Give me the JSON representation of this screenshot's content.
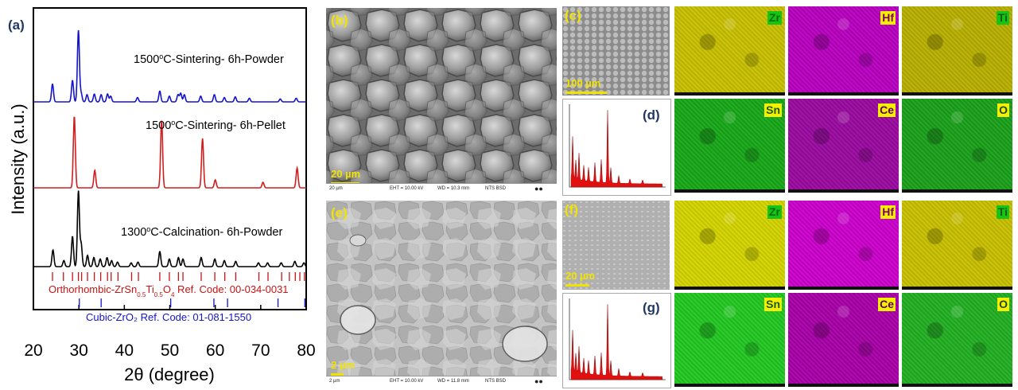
{
  "panel_a": {
    "label": "(a)",
    "ylabel": "Intensity (a.u.)",
    "xlabel": "2θ (degree)",
    "xticks": [
      "20",
      "30",
      "40",
      "50",
      "60",
      "70",
      "80"
    ],
    "curve_labels": [
      {
        "text_pre": "1500",
        "sup": "o",
        "text_post": "C-Sintering- 6h-Powder"
      },
      {
        "text_pre": "1500",
        "sup": "o",
        "text_post": "C-Sintering- 6h-Pellet"
      },
      {
        "text_pre": "1300",
        "sup": "o",
        "text_post": "C-Calcination- 6h-Powder"
      }
    ],
    "ref1": {
      "text_pre": "Orthorhombic-ZrSn",
      "sub1": "0.5",
      "mid": "Ti",
      "sub2": "0.5",
      "post": "O",
      "sub3": "4",
      "tail": "  Ref. Code: 00-034-0031"
    },
    "ref2": "Cubic-ZrO₂ Ref. Code: 01-081-1550",
    "colors": {
      "powder1500": "#1414c8",
      "pellet1500": "#d21e1e",
      "calc1300": "#000000",
      "ref_ortho": "#c81414",
      "ref_cubic": "#1414c8"
    }
  },
  "chart_data": {
    "type": "line",
    "xlabel": "2θ (degree)",
    "ylabel": "Intensity (a.u.)",
    "xlim": [
      20,
      80
    ],
    "series": [
      {
        "name": "1500oC-Sintering- 6h-Powder",
        "color": "#1414c8",
        "peaks": [
          [
            24.2,
            0.25
          ],
          [
            28.6,
            0.3
          ],
          [
            29.9,
            1.0
          ],
          [
            30.5,
            0.12
          ],
          [
            31.8,
            0.1
          ],
          [
            33.4,
            0.11
          ],
          [
            34.9,
            0.1
          ],
          [
            36.3,
            0.11
          ],
          [
            37.0,
            0.08
          ],
          [
            42.9,
            0.06
          ],
          [
            47.8,
            0.15
          ],
          [
            49.9,
            0.08
          ],
          [
            51.8,
            0.1
          ],
          [
            52.4,
            0.12
          ],
          [
            53.2,
            0.1
          ],
          [
            56.8,
            0.08
          ],
          [
            59.8,
            0.1
          ],
          [
            62.0,
            0.06
          ],
          [
            64.4,
            0.07
          ],
          [
            67.5,
            0.05
          ],
          [
            74.3,
            0.04
          ],
          [
            77.8,
            0.05
          ]
        ]
      },
      {
        "name": "1500oC-Sintering- 6h-Pellet",
        "color": "#d21e1e",
        "peaks": [
          [
            29.0,
            0.9
          ],
          [
            33.5,
            0.22
          ],
          [
            48.2,
            0.85
          ],
          [
            57.2,
            0.62
          ],
          [
            60.0,
            0.1
          ],
          [
            70.5,
            0.07
          ],
          [
            78.0,
            0.25
          ]
        ]
      },
      {
        "name": "1300oC-Calcination- 6h-Powder",
        "color": "#000000",
        "peaks": [
          [
            24.3,
            0.22
          ],
          [
            26.7,
            0.08
          ],
          [
            28.6,
            0.4
          ],
          [
            29.9,
            1.0
          ],
          [
            30.5,
            0.3
          ],
          [
            31.9,
            0.15
          ],
          [
            33.3,
            0.12
          ],
          [
            34.7,
            0.1
          ],
          [
            36.2,
            0.12
          ],
          [
            37.2,
            0.08
          ],
          [
            38.5,
            0.06
          ],
          [
            41.5,
            0.05
          ],
          [
            43.0,
            0.06
          ],
          [
            47.8,
            0.2
          ],
          [
            49.9,
            0.1
          ],
          [
            51.9,
            0.12
          ],
          [
            52.9,
            0.1
          ],
          [
            56.9,
            0.12
          ],
          [
            59.9,
            0.1
          ],
          [
            62.0,
            0.08
          ],
          [
            64.5,
            0.07
          ],
          [
            69.5,
            0.05
          ],
          [
            71.5,
            0.05
          ],
          [
            74.5,
            0.05
          ],
          [
            77.5,
            0.07
          ],
          [
            79.5,
            0.05
          ]
        ]
      }
    ],
    "ref_ortho_positions": [
      24.2,
      26.6,
      28.6,
      29.9,
      30.6,
      31.9,
      33.4,
      34.8,
      36.3,
      37.1,
      38.6,
      41.6,
      43.1,
      47.8,
      49.9,
      51.9,
      52.9,
      56.9,
      59.9,
      62.1,
      64.5,
      69.6,
      71.6,
      74.6,
      76.3,
      77.6,
      78.6,
      79.6
    ],
    "ref_cubic_positions": [
      30.1,
      34.9,
      50.2,
      59.7,
      62.7,
      73.8,
      79.7
    ]
  },
  "panels": {
    "b": {
      "label": "(b)",
      "scale": "20 µm",
      "footer": {
        "bar": "20 µm",
        "eht": "EHT = 10.00 kV",
        "wd": "WD = 10.3 mm",
        "det": "NTS BSD"
      }
    },
    "c": {
      "label": "(c)",
      "scale": "100 µm"
    },
    "d": {
      "label": "(d)"
    },
    "e": {
      "label": "(e)",
      "scale": "2 µm",
      "footer": {
        "bar": "2 µm",
        "eht": "EHT = 10.00 kV",
        "wd": "WD = 11.8 mm",
        "det": "NTS BSD"
      }
    },
    "f": {
      "label": "(f)",
      "scale": "20 µm"
    },
    "g": {
      "label": "(g)"
    }
  },
  "maps_top": [
    {
      "el": "Zr",
      "bg": "#c8c000",
      "badge_bg": "#16c416",
      "badge_fg": "#0a6a0a"
    },
    {
      "el": "Hf",
      "bg": "#b800c0",
      "badge_bg": "#f6f000",
      "badge_fg": "#7a0070"
    },
    {
      "el": "Ti",
      "bg": "#b8b000",
      "badge_bg": "#16c416",
      "badge_fg": "#1a5a1a"
    },
    {
      "el": "Sn",
      "bg": "#18a818",
      "badge_bg": "#f6f000",
      "badge_fg": "#1a5a1a"
    },
    {
      "el": "Ce",
      "bg": "#9a0aa0",
      "badge_bg": "#f6f000",
      "badge_fg": "#5a005a"
    },
    {
      "el": "O",
      "bg": "#1aa01a",
      "badge_bg": "#f6f000",
      "badge_fg": "#1a4a1a"
    }
  ],
  "maps_bottom": [
    {
      "el": "Zr",
      "bg": "#d4d400",
      "badge_bg": "#16c416",
      "badge_fg": "#0a6a0a"
    },
    {
      "el": "Hf",
      "bg": "#cc00cc",
      "badge_bg": "#f6f000",
      "badge_fg": "#7a0070"
    },
    {
      "el": "Ti",
      "bg": "#c8c000",
      "badge_bg": "#16c416",
      "badge_fg": "#1a5a1a"
    },
    {
      "el": "Sn",
      "bg": "#22c822",
      "badge_bg": "#f6f000",
      "badge_fg": "#1a5a1a"
    },
    {
      "el": "Ce",
      "bg": "#a800a8",
      "badge_bg": "#f6f000",
      "badge_fg": "#5a005a"
    },
    {
      "el": "O",
      "bg": "#22b022",
      "badge_bg": "#f6f000",
      "badge_fg": "#1a4a1a"
    }
  ]
}
